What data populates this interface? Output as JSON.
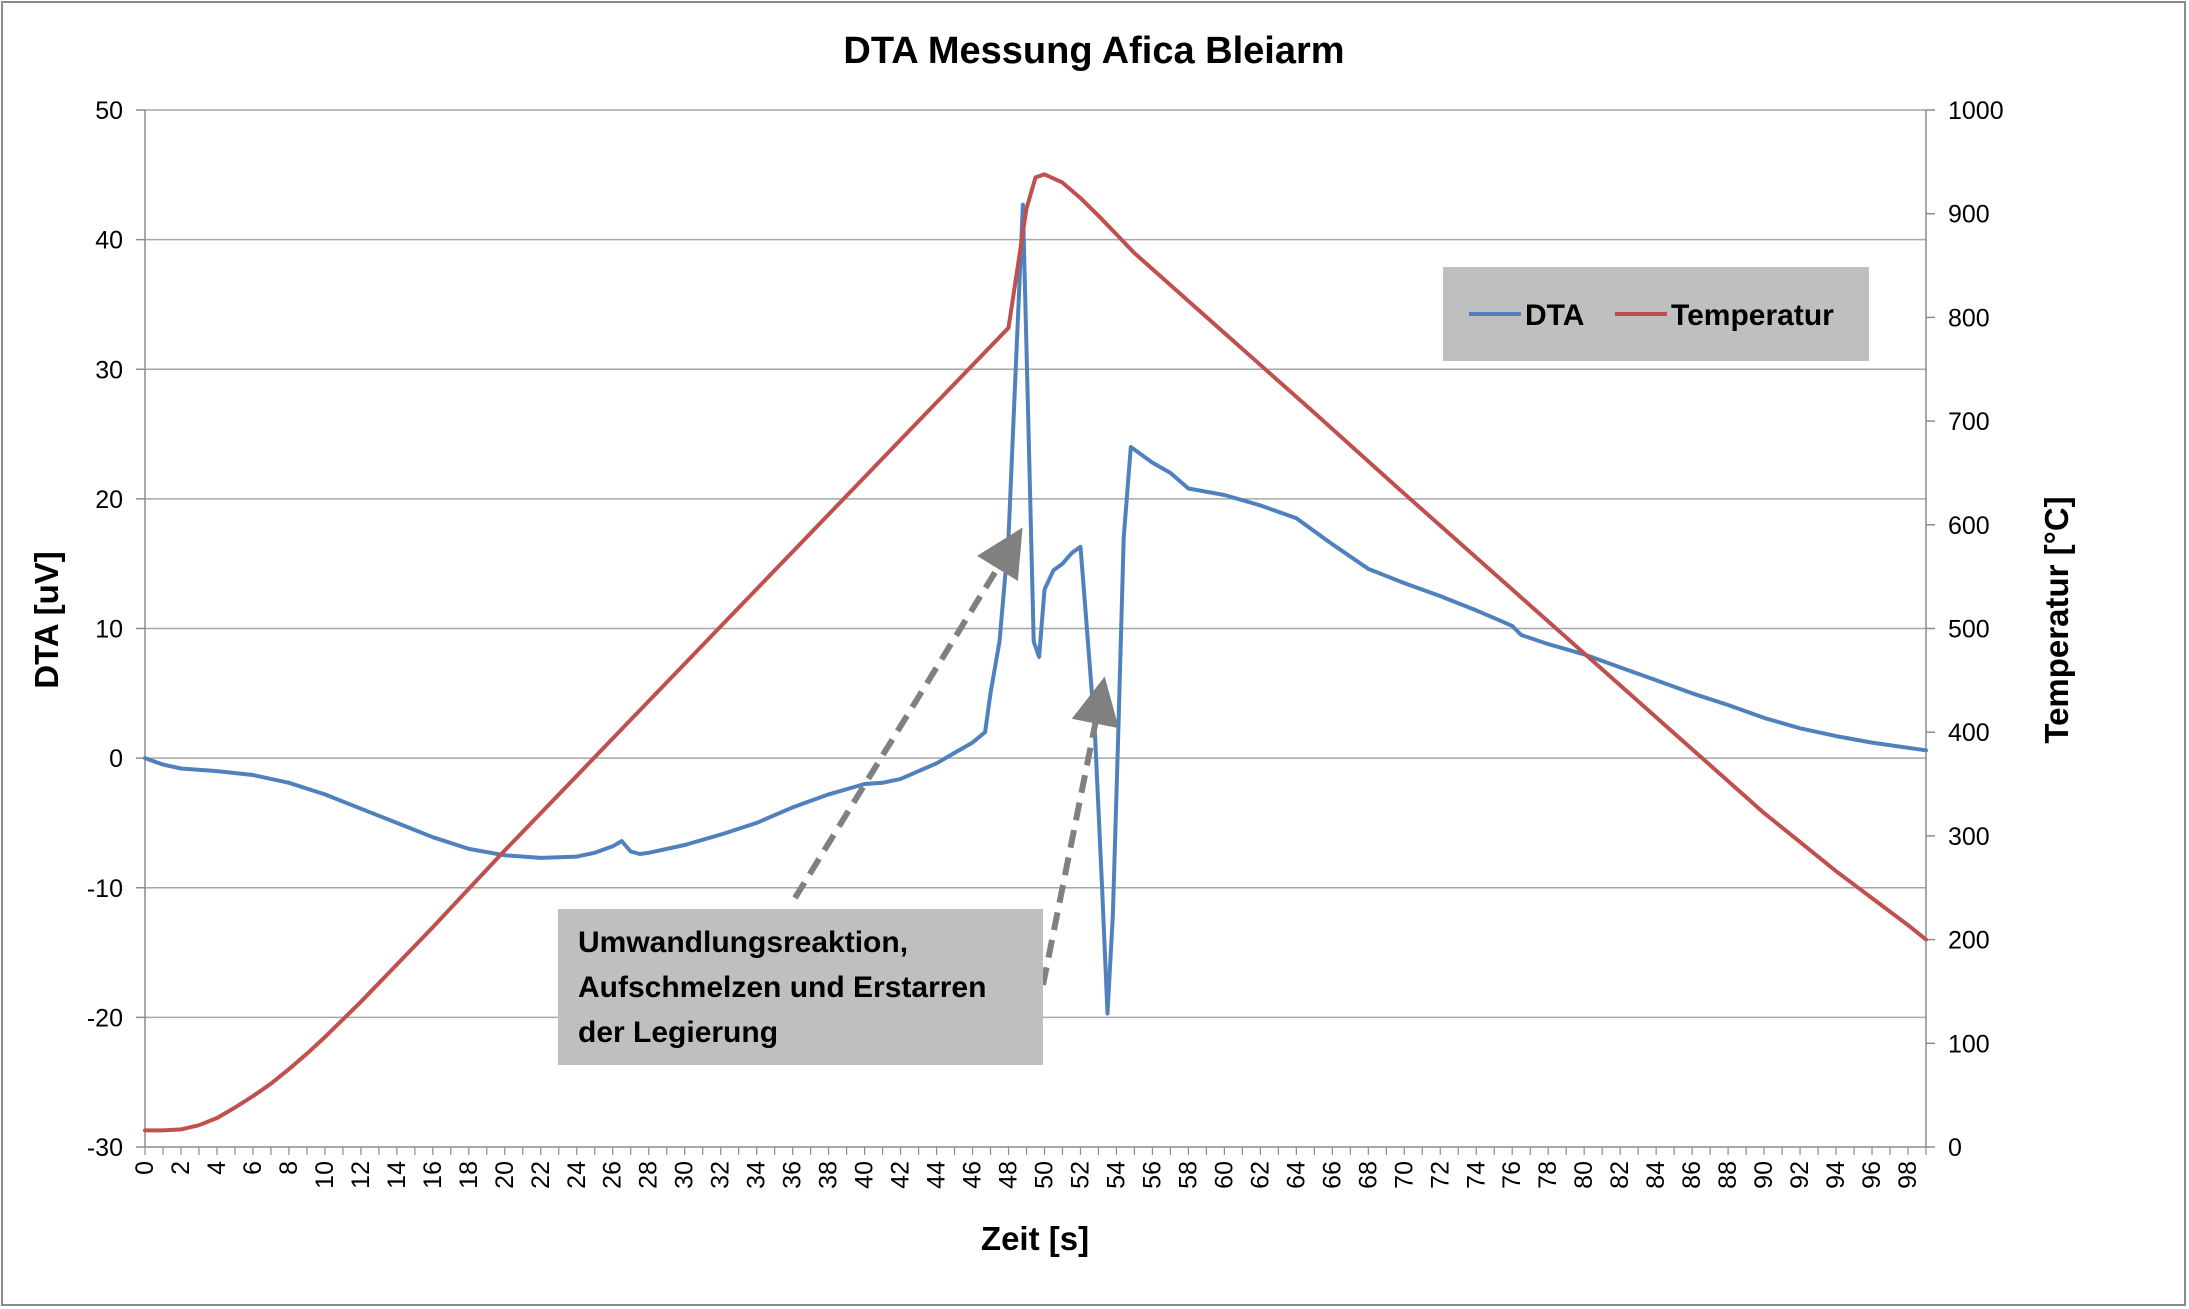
{
  "chart_data": {
    "type": "line",
    "title": "DTA Messung Afica Bleiarm",
    "xlabel": "Zeit [s]",
    "ylabel": "DTA [uV]",
    "y2label": "Temperatur [°C]",
    "xlim": [
      0,
      99
    ],
    "ylim": [
      -30,
      50
    ],
    "y2lim": [
      0,
      1000
    ],
    "x_ticks": [
      0,
      2,
      4,
      6,
      8,
      10,
      12,
      14,
      16,
      18,
      20,
      22,
      24,
      26,
      28,
      30,
      32,
      34,
      36,
      38,
      40,
      42,
      44,
      46,
      48,
      50,
      52,
      54,
      56,
      58,
      60,
      62,
      64,
      66,
      68,
      70,
      72,
      74,
      76,
      78,
      80,
      82,
      84,
      86,
      88,
      90,
      92,
      94,
      96,
      98
    ],
    "y_ticks": [
      -30,
      -20,
      -10,
      0,
      10,
      20,
      30,
      40,
      50
    ],
    "y2_ticks": [
      0,
      100,
      200,
      300,
      400,
      500,
      600,
      700,
      800,
      900,
      1000
    ],
    "grid": "horizontal",
    "legend": "top-right",
    "series": [
      {
        "name": "DTA",
        "axis": "left",
        "color": "#4f81bd",
        "x": [
          0,
          1,
          2,
          4,
          6,
          8,
          10,
          12,
          14,
          16,
          18,
          20,
          22,
          24,
          25,
          26,
          26.5,
          27,
          27.5,
          28,
          30,
          32,
          34,
          36,
          38,
          40,
          41,
          42,
          44,
          45,
          46,
          46.7,
          47,
          47.5,
          48,
          48.4,
          48.8,
          49.1,
          49.4,
          49.7,
          50,
          50.5,
          51,
          51.5,
          52,
          52.3,
          52.8,
          53.2,
          53.5,
          53.8,
          54.1,
          54.4,
          54.8,
          55.3,
          56,
          57,
          58,
          60,
          62,
          64,
          66,
          68,
          70,
          72,
          74,
          75,
          76,
          76.5,
          78,
          80,
          82,
          84,
          86,
          88,
          90,
          92,
          94,
          96,
          98,
          99
        ],
        "values": [
          0,
          -0.5,
          -0.8,
          -1.0,
          -1.3,
          -1.9,
          -2.8,
          -3.9,
          -5.0,
          -6.1,
          -7.0,
          -7.5,
          -7.7,
          -7.6,
          -7.3,
          -6.8,
          -6.4,
          -7.2,
          -7.4,
          -7.3,
          -6.7,
          -5.9,
          -5.0,
          -3.8,
          -2.8,
          -2.0,
          -1.9,
          -1.6,
          -0.4,
          0.4,
          1.2,
          2.0,
          5.0,
          9.0,
          17.0,
          30.0,
          42.7,
          26.0,
          9.0,
          7.8,
          13.0,
          14.5,
          15.0,
          15.8,
          16.3,
          11.0,
          2.0,
          -10.0,
          -19.7,
          -12.0,
          2.0,
          17.0,
          24.0,
          23.5,
          22.8,
          22.0,
          20.8,
          20.3,
          19.5,
          18.5,
          16.5,
          14.6,
          13.5,
          12.5,
          11.4,
          10.8,
          10.2,
          9.5,
          8.8,
          8.0,
          7.0,
          6.0,
          5.0,
          4.1,
          3.1,
          2.3,
          1.7,
          1.2,
          0.8,
          0.6
        ]
      },
      {
        "name": "Temperatur",
        "axis": "right",
        "color": "#c0504d",
        "x": [
          0,
          1,
          2,
          3,
          4,
          5,
          6,
          7,
          8,
          9,
          10,
          12,
          14,
          16,
          18,
          20,
          24,
          28,
          32,
          36,
          40,
          44,
          48,
          49,
          49.5,
          50,
          51,
          52,
          53,
          54,
          55,
          60,
          65,
          70,
          75,
          80,
          85,
          90,
          92,
          94,
          96,
          98,
          99
        ],
        "values": [
          16,
          16,
          17,
          21,
          28,
          38,
          49,
          61,
          75,
          90,
          106,
          140,
          176,
          212,
          249,
          286,
          358,
          430,
          502,
          574,
          646,
          718,
          790,
          905,
          935,
          938,
          930,
          915,
          898,
          880,
          862,
          785,
          708,
          630,
          553,
          476,
          399,
          322,
          294,
          266,
          240,
          214,
          200
        ]
      }
    ],
    "annotation": {
      "lines": [
        "Umwandlungsreaktion,",
        "Aufschmelzen  und Erstarren",
        "der Legierung"
      ]
    }
  }
}
